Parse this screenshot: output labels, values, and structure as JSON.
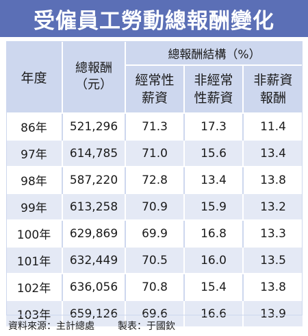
{
  "title": "受僱員工勞動總報酬變化",
  "header": {
    "year": "年度",
    "total_line1": "總報酬",
    "total_line2": "（元）",
    "structure": "總報酬結構（%）",
    "regular_line1": "經常性",
    "regular_line2": "薪資",
    "irregular_line1": "非經常",
    "irregular_line2": "性薪資",
    "nonwage_line1": "非薪資",
    "nonwage_line2": "報酬"
  },
  "rows": [
    {
      "year": "86年",
      "total": "521,296",
      "regular": "71.3",
      "irregular": "17.3",
      "nonwage": "11.4"
    },
    {
      "year": "97年",
      "total": "614,785",
      "regular": "71.0",
      "irregular": "15.6",
      "nonwage": "13.4"
    },
    {
      "year": "98年",
      "total": "587,220",
      "regular": "72.8",
      "irregular": "13.4",
      "nonwage": "13.8"
    },
    {
      "year": "99年",
      "total": "613,258",
      "regular": "70.9",
      "irregular": "15.9",
      "nonwage": "13.2"
    },
    {
      "year": "100年",
      "total": "629,869",
      "regular": "69.9",
      "irregular": "16.8",
      "nonwage": "13.3"
    },
    {
      "year": "101年",
      "total": "632,449",
      "regular": "70.5",
      "irregular": "16.0",
      "nonwage": "13.5"
    },
    {
      "year": "102年",
      "total": "636,056",
      "regular": "70.8",
      "irregular": "15.4",
      "nonwage": "13.8"
    },
    {
      "year": "103年",
      "total": "659,126",
      "regular": "69.6",
      "irregular": "16.6",
      "nonwage": "13.9"
    }
  ],
  "footer": {
    "source": "資料來源：主計總處",
    "maker": "製表：于國欽"
  },
  "colors": {
    "title_bg": "#5b6fb6",
    "header_bg": "#cdd7ee",
    "stripe_bg": "#e4e9f5"
  }
}
